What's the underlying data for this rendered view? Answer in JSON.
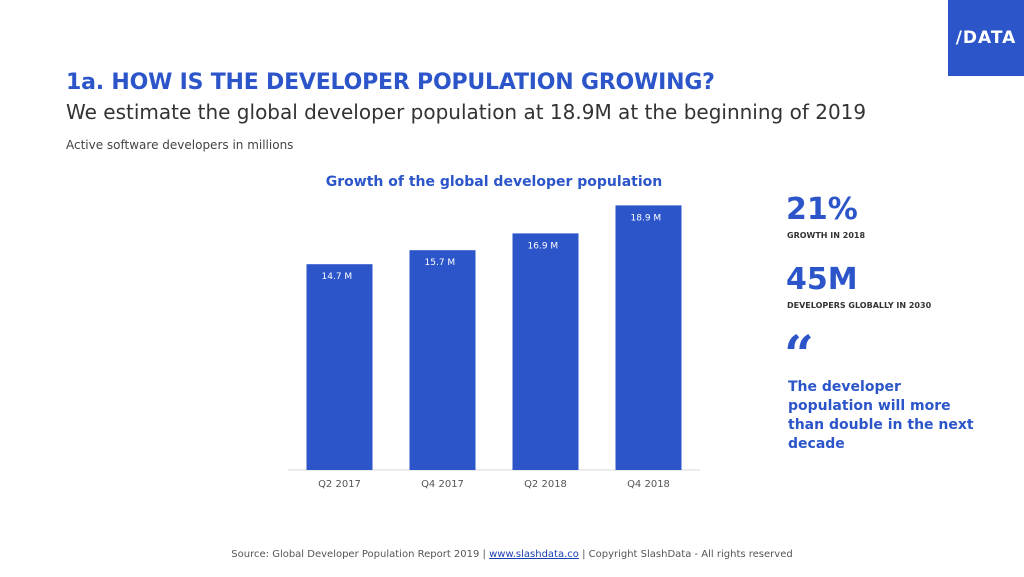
{
  "logo": {
    "text": "/DATA"
  },
  "header": {
    "title": "1a. HOW IS THE DEVELOPER POPULATION GROWING?",
    "subtitle": "We estimate the global developer population at 18.9M at the beginning of 2019",
    "caption": "Active software developers in millions"
  },
  "stats": {
    "growth_value": "21%",
    "growth_label": "GROWTH IN 2018",
    "devs_value": "45M",
    "devs_label": "DEVELOPERS GLOBALLY IN 2030",
    "quote_mark": "“",
    "quote": "The developer population will more than double in the next decade"
  },
  "footer": {
    "prefix": "Source: Global Developer Population Report 2019 | ",
    "link": "www.slashdata.co",
    "suffix": " | Copyright SlashData - All rights reserved"
  },
  "colors": {
    "accent": "#2b55c9",
    "bar": "#2b55c9"
  },
  "chart_data": {
    "type": "bar",
    "title": "Growth of the global developer population",
    "categories": [
      "Q2 2017",
      "Q4 2017",
      "Q2 2018",
      "Q4 2018"
    ],
    "values": [
      14.7,
      15.7,
      16.9,
      18.9
    ],
    "data_labels": [
      "14.7 M",
      "15.7 M",
      "16.9 M",
      "18.9 M"
    ],
    "xlabel": "",
    "ylabel": "",
    "ylim": [
      0,
      20
    ],
    "grid": false,
    "legend": "none"
  }
}
